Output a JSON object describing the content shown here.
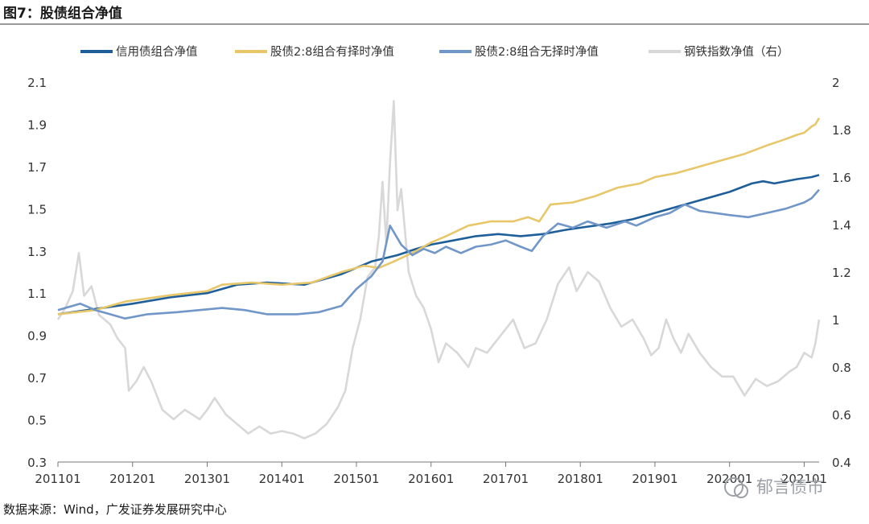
{
  "figure": {
    "title": "图7：股债组合净值",
    "source": "数据来源：Wind，广发证券发展研究中心",
    "watermark": "郁言债市"
  },
  "chart_data": {
    "type": "line",
    "x_tick_labels": [
      "201101",
      "201201",
      "201301",
      "201401",
      "201501",
      "201601",
      "201701",
      "201801",
      "201901",
      "202001",
      "202101"
    ],
    "y_left": {
      "range": [
        0.3,
        2.1
      ],
      "ticks": [
        "0.3",
        "0.5",
        "0.7",
        "0.9",
        "1.1",
        "1.3",
        "1.5",
        "1.7",
        "1.9",
        "2.1"
      ]
    },
    "y_right": {
      "range": [
        0.4,
        2.0
      ],
      "ticks": [
        "0.4",
        "0.6",
        "0.8",
        "1",
        "1.2",
        "1.4",
        "1.6",
        "1.8",
        "2"
      ]
    },
    "grid": false,
    "legend_position": "top",
    "series": [
      {
        "name": "信用债组合净值",
        "axis": "left",
        "color": "#1f5f99",
        "width": 2.6,
        "points": [
          [
            2011.0,
            1.0
          ],
          [
            2012.0,
            1.05
          ],
          [
            2012.5,
            1.08
          ],
          [
            2013.0,
            1.1
          ],
          [
            2013.4,
            1.14
          ],
          [
            2013.8,
            1.15
          ],
          [
            2014.3,
            1.14
          ],
          [
            2014.8,
            1.19
          ],
          [
            2015.2,
            1.25
          ],
          [
            2015.55,
            1.28
          ],
          [
            2015.8,
            1.31
          ],
          [
            2016.0,
            1.33
          ],
          [
            2016.3,
            1.35
          ],
          [
            2016.6,
            1.37
          ],
          [
            2016.9,
            1.38
          ],
          [
            2017.2,
            1.37
          ],
          [
            2017.5,
            1.38
          ],
          [
            2017.8,
            1.4
          ],
          [
            2018.0,
            1.41
          ],
          [
            2018.4,
            1.43
          ],
          [
            2018.7,
            1.45
          ],
          [
            2019.0,
            1.48
          ],
          [
            2019.5,
            1.53
          ],
          [
            2020.0,
            1.58
          ],
          [
            2020.3,
            1.62
          ],
          [
            2020.45,
            1.63
          ],
          [
            2020.6,
            1.62
          ],
          [
            2020.9,
            1.64
          ],
          [
            2021.1,
            1.65
          ],
          [
            2021.2,
            1.66
          ]
        ]
      },
      {
        "name": "股债2:8组合有择时净值",
        "axis": "left",
        "color": "#e8c76a",
        "width": 2.6,
        "points": [
          [
            2011.0,
            1.0
          ],
          [
            2011.5,
            1.02
          ],
          [
            2011.9,
            1.06
          ],
          [
            2012.5,
            1.09
          ],
          [
            2013.0,
            1.11
          ],
          [
            2013.2,
            1.14
          ],
          [
            2013.6,
            1.15
          ],
          [
            2014.0,
            1.14
          ],
          [
            2014.4,
            1.15
          ],
          [
            2014.8,
            1.2
          ],
          [
            2015.1,
            1.23
          ],
          [
            2015.3,
            1.22
          ],
          [
            2015.5,
            1.25
          ],
          [
            2015.8,
            1.3
          ],
          [
            2016.0,
            1.34
          ],
          [
            2016.2,
            1.37
          ],
          [
            2016.5,
            1.42
          ],
          [
            2016.8,
            1.44
          ],
          [
            2017.1,
            1.44
          ],
          [
            2017.3,
            1.46
          ],
          [
            2017.45,
            1.44
          ],
          [
            2017.6,
            1.52
          ],
          [
            2017.9,
            1.53
          ],
          [
            2018.2,
            1.56
          ],
          [
            2018.5,
            1.6
          ],
          [
            2018.8,
            1.62
          ],
          [
            2019.0,
            1.65
          ],
          [
            2019.3,
            1.67
          ],
          [
            2019.6,
            1.7
          ],
          [
            2019.9,
            1.73
          ],
          [
            2020.2,
            1.76
          ],
          [
            2020.5,
            1.8
          ],
          [
            2020.75,
            1.83
          ],
          [
            2020.9,
            1.85
          ],
          [
            2021.0,
            1.86
          ],
          [
            2021.1,
            1.89
          ],
          [
            2021.15,
            1.9
          ],
          [
            2021.2,
            1.93
          ]
        ]
      },
      {
        "name": "股债2:8组合无择时净值",
        "axis": "left",
        "color": "#7196c8",
        "width": 2.6,
        "points": [
          [
            2011.0,
            1.02
          ],
          [
            2011.3,
            1.05
          ],
          [
            2011.5,
            1.02
          ],
          [
            2011.7,
            1.0
          ],
          [
            2011.9,
            0.98
          ],
          [
            2012.2,
            1.0
          ],
          [
            2012.6,
            1.01
          ],
          [
            2012.9,
            1.02
          ],
          [
            2013.2,
            1.03
          ],
          [
            2013.5,
            1.02
          ],
          [
            2013.8,
            1.0
          ],
          [
            2014.2,
            1.0
          ],
          [
            2014.5,
            1.01
          ],
          [
            2014.8,
            1.04
          ],
          [
            2015.0,
            1.12
          ],
          [
            2015.2,
            1.18
          ],
          [
            2015.35,
            1.25
          ],
          [
            2015.45,
            1.42
          ],
          [
            2015.6,
            1.33
          ],
          [
            2015.75,
            1.28
          ],
          [
            2015.9,
            1.31
          ],
          [
            2016.05,
            1.29
          ],
          [
            2016.2,
            1.32
          ],
          [
            2016.4,
            1.29
          ],
          [
            2016.6,
            1.32
          ],
          [
            2016.8,
            1.33
          ],
          [
            2017.0,
            1.35
          ],
          [
            2017.2,
            1.32
          ],
          [
            2017.35,
            1.3
          ],
          [
            2017.5,
            1.37
          ],
          [
            2017.7,
            1.43
          ],
          [
            2017.9,
            1.41
          ],
          [
            2018.1,
            1.44
          ],
          [
            2018.35,
            1.41
          ],
          [
            2018.6,
            1.44
          ],
          [
            2018.75,
            1.42
          ],
          [
            2019.0,
            1.46
          ],
          [
            2019.2,
            1.48
          ],
          [
            2019.4,
            1.52
          ],
          [
            2019.6,
            1.49
          ],
          [
            2019.8,
            1.48
          ],
          [
            2020.0,
            1.47
          ],
          [
            2020.25,
            1.46
          ],
          [
            2020.5,
            1.48
          ],
          [
            2020.75,
            1.5
          ],
          [
            2021.0,
            1.53
          ],
          [
            2021.1,
            1.55
          ],
          [
            2021.2,
            1.59
          ]
        ]
      },
      {
        "name": "钢铁指数净值（右）",
        "axis": "right",
        "color": "#d8d8d8",
        "width": 2.6,
        "points": [
          [
            2011.0,
            1.0
          ],
          [
            2011.1,
            1.05
          ],
          [
            2011.2,
            1.12
          ],
          [
            2011.28,
            1.28
          ],
          [
            2011.35,
            1.1
          ],
          [
            2011.45,
            1.14
          ],
          [
            2011.55,
            1.02
          ],
          [
            2011.7,
            0.98
          ],
          [
            2011.8,
            0.92
          ],
          [
            2011.9,
            0.88
          ],
          [
            2011.95,
            0.7
          ],
          [
            2012.05,
            0.74
          ],
          [
            2012.15,
            0.8
          ],
          [
            2012.25,
            0.74
          ],
          [
            2012.4,
            0.62
          ],
          [
            2012.55,
            0.58
          ],
          [
            2012.7,
            0.62
          ],
          [
            2012.9,
            0.58
          ],
          [
            2013.0,
            0.62
          ],
          [
            2013.1,
            0.67
          ],
          [
            2013.25,
            0.6
          ],
          [
            2013.4,
            0.56
          ],
          [
            2013.55,
            0.52
          ],
          [
            2013.7,
            0.55
          ],
          [
            2013.85,
            0.52
          ],
          [
            2014.0,
            0.53
          ],
          [
            2014.15,
            0.52
          ],
          [
            2014.3,
            0.5
          ],
          [
            2014.45,
            0.52
          ],
          [
            2014.6,
            0.56
          ],
          [
            2014.75,
            0.63
          ],
          [
            2014.85,
            0.7
          ],
          [
            2014.95,
            0.88
          ],
          [
            2015.05,
            1.0
          ],
          [
            2015.15,
            1.18
          ],
          [
            2015.25,
            1.22
          ],
          [
            2015.3,
            1.35
          ],
          [
            2015.35,
            1.58
          ],
          [
            2015.4,
            1.32
          ],
          [
            2015.45,
            1.66
          ],
          [
            2015.5,
            1.92
          ],
          [
            2015.55,
            1.46
          ],
          [
            2015.6,
            1.55
          ],
          [
            2015.7,
            1.2
          ],
          [
            2015.8,
            1.1
          ],
          [
            2015.9,
            1.05
          ],
          [
            2016.0,
            0.96
          ],
          [
            2016.1,
            0.82
          ],
          [
            2016.2,
            0.9
          ],
          [
            2016.35,
            0.86
          ],
          [
            2016.5,
            0.8
          ],
          [
            2016.6,
            0.88
          ],
          [
            2016.75,
            0.86
          ],
          [
            2016.9,
            0.92
          ],
          [
            2017.0,
            0.96
          ],
          [
            2017.1,
            1.0
          ],
          [
            2017.25,
            0.88
          ],
          [
            2017.4,
            0.9
          ],
          [
            2017.55,
            1.0
          ],
          [
            2017.7,
            1.15
          ],
          [
            2017.85,
            1.22
          ],
          [
            2017.95,
            1.12
          ],
          [
            2018.1,
            1.2
          ],
          [
            2018.25,
            1.16
          ],
          [
            2018.4,
            1.05
          ],
          [
            2018.55,
            0.97
          ],
          [
            2018.7,
            1.0
          ],
          [
            2018.85,
            0.92
          ],
          [
            2018.95,
            0.85
          ],
          [
            2019.05,
            0.88
          ],
          [
            2019.15,
            1.0
          ],
          [
            2019.25,
            0.92
          ],
          [
            2019.35,
            0.86
          ],
          [
            2019.45,
            0.94
          ],
          [
            2019.6,
            0.86
          ],
          [
            2019.75,
            0.8
          ],
          [
            2019.9,
            0.76
          ],
          [
            2020.05,
            0.76
          ],
          [
            2020.2,
            0.68
          ],
          [
            2020.35,
            0.75
          ],
          [
            2020.5,
            0.72
          ],
          [
            2020.65,
            0.74
          ],
          [
            2020.8,
            0.78
          ],
          [
            2020.9,
            0.8
          ],
          [
            2021.0,
            0.86
          ],
          [
            2021.1,
            0.84
          ],
          [
            2021.15,
            0.9
          ],
          [
            2021.2,
            1.0
          ]
        ]
      }
    ]
  }
}
